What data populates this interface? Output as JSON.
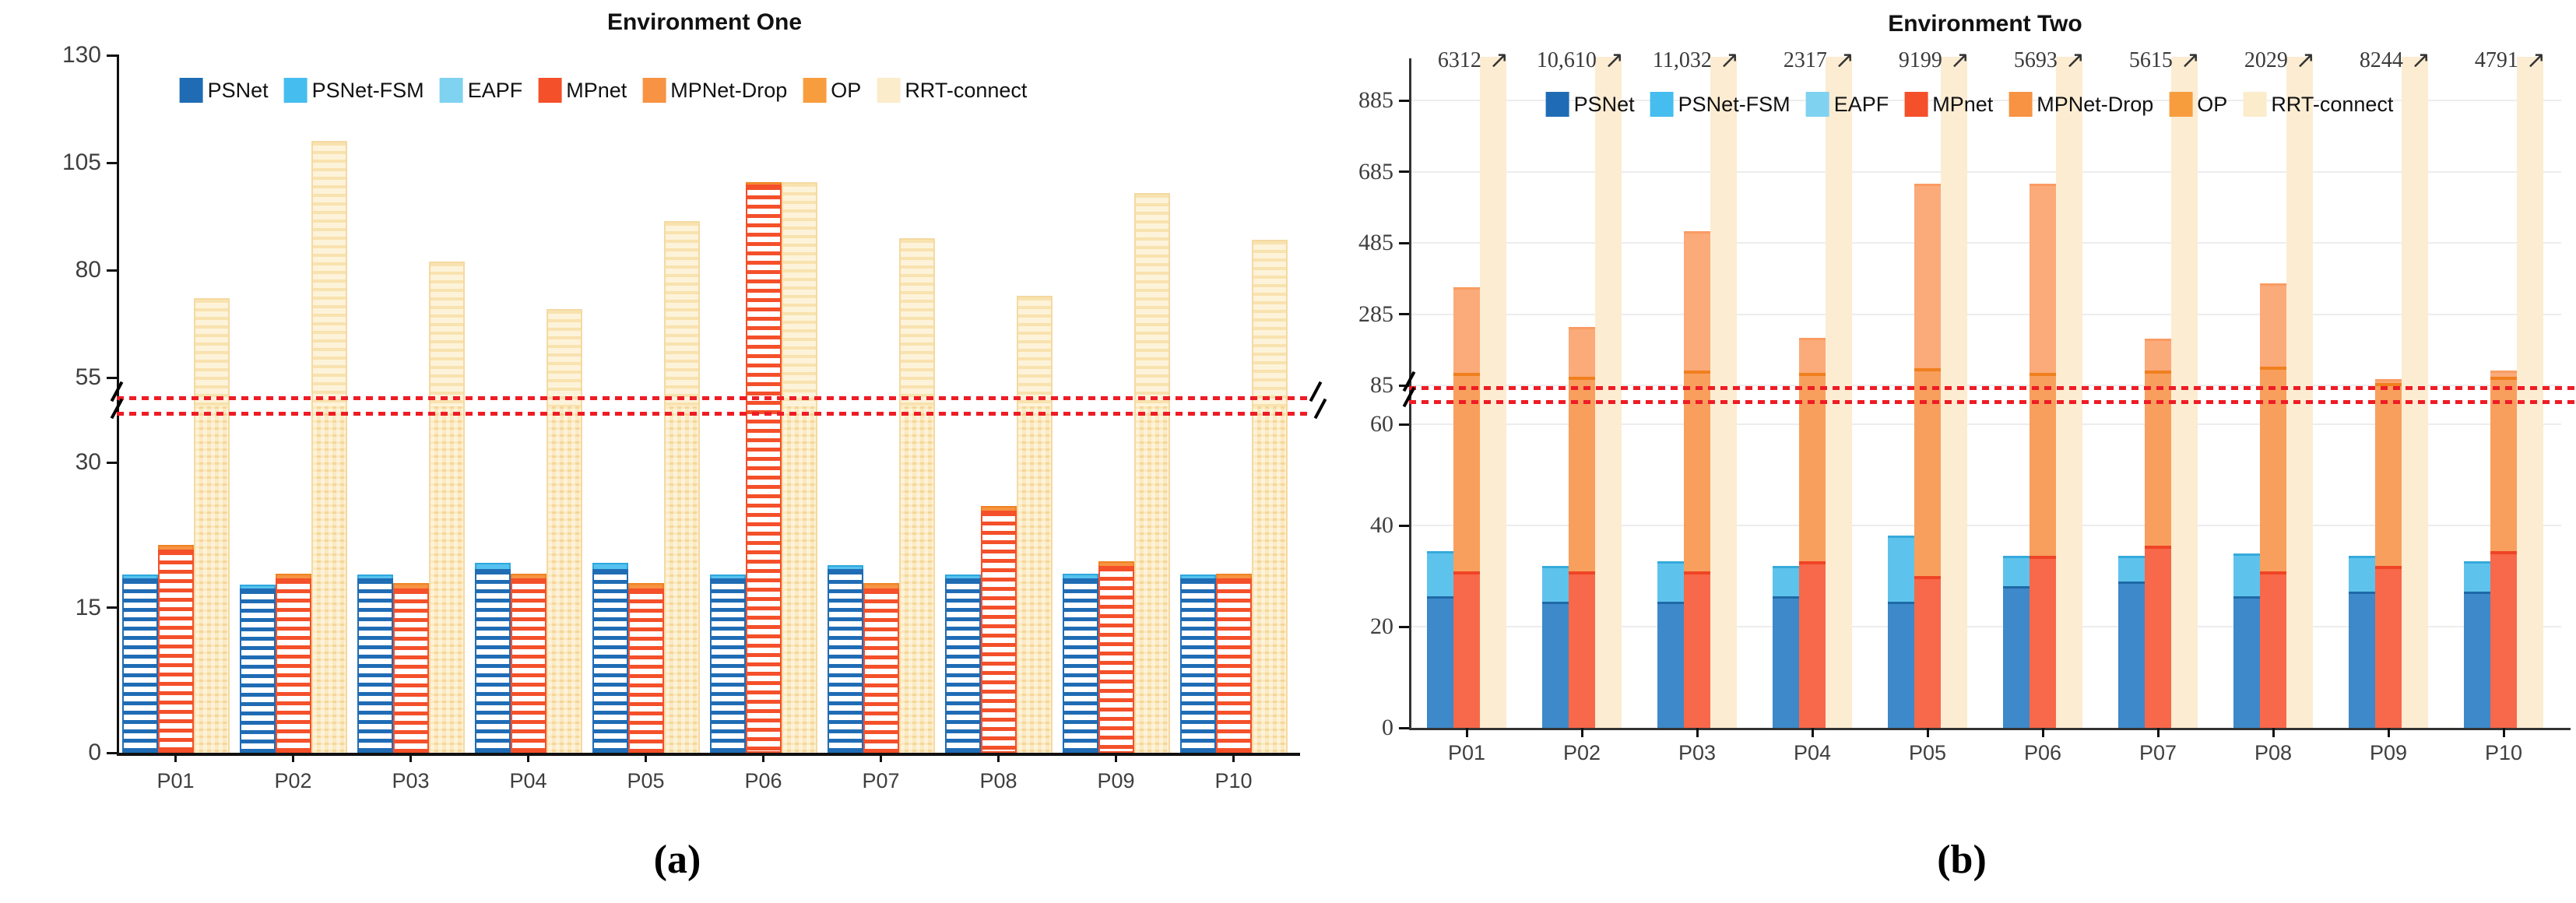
{
  "figure": {
    "caption_a": "(a)",
    "caption_b": "(b)"
  },
  "colors": {
    "psnet": "#1f6cb5",
    "psnet_fsm": "#56c2ef",
    "eapf": "#a9dcf2",
    "mpnet": "#f4502a",
    "mpnet_drop": "#f79342",
    "mpnet_drop_right": "#fbaa79",
    "op": "#f89f5d",
    "rrt_connect_fill": "#fdf3da",
    "rrt_connect_line": "#f5d9a2",
    "break_line_red": "#ee1c25",
    "gridline": "#ededed",
    "axis": "#111111"
  },
  "chart_data": [
    {
      "type": "bar",
      "title": "Environment One",
      "categories": [
        "P01",
        "P02",
        "P03",
        "P04",
        "P05",
        "P06",
        "P07",
        "P08",
        "P09",
        "P10"
      ],
      "legend": [
        "PSNet",
        "PSNet-FSM",
        "EAPF",
        "MPnet",
        "MPNet-Drop",
        "OP",
        "RRT-connect"
      ],
      "grid": false,
      "y_axis": {
        "lower_ticks": [
          0,
          15,
          30
        ],
        "upper_ticks": [
          55,
          80,
          105,
          130
        ],
        "axis_break": "broken axis between ~40 and ~52, marked by two red dotted lines and slash marks"
      },
      "series": [
        {
          "name": "PSNet",
          "values": [
            18,
            17,
            18,
            19,
            19,
            18,
            19,
            18,
            18,
            18
          ]
        },
        {
          "name": "PSNet-FSM",
          "values": [
            18.4,
            17.4,
            18.4,
            19.6,
            19.6,
            18.4,
            19.4,
            18.4,
            18.5,
            18.4
          ],
          "note": "only a thin light-blue cap visible above PSNet"
        },
        {
          "name": "EAPF",
          "values": null,
          "note": "fully occluded behind other bars"
        },
        {
          "name": "MPnet",
          "values": [
            21,
            18,
            17,
            18,
            17,
            100,
            17,
            25,
            19.3,
            18
          ]
        },
        {
          "name": "MPNet-Drop",
          "values": [
            21.5,
            18.5,
            17.5,
            18.5,
            17.5,
            100.4,
            17.5,
            25.5,
            19.8,
            18.5
          ],
          "note": "only a thin orange cap visible above MPnet"
        },
        {
          "name": "OP",
          "values": null,
          "note": "bar tops hidden inside the axis break (~40-50)"
        },
        {
          "name": "RRT-connect",
          "values": [
            73.5,
            110,
            82,
            71,
            91.5,
            100.5,
            87.5,
            74,
            98,
            87
          ]
        }
      ]
    },
    {
      "type": "bar",
      "title": "Environment Two",
      "categories": [
        "P01",
        "P02",
        "P03",
        "P04",
        "P05",
        "P06",
        "P07",
        "P08",
        "P09",
        "P10"
      ],
      "legend": [
        "PSNet",
        "PSNet-FSM",
        "EAPF",
        "MPnet",
        "MPNet-Drop",
        "OP",
        "RRT-connect"
      ],
      "grid": true,
      "y_axis": {
        "lower_ticks": [
          0,
          20,
          40,
          60
        ],
        "upper_ticks": [
          85,
          285,
          485,
          685,
          885
        ],
        "axis_break": "broken axis between 60 and 85, marked by two red dotted lines and slash marks"
      },
      "series": [
        {
          "name": "PSNet",
          "values": [
            26,
            25,
            25,
            26,
            25,
            28,
            29,
            26,
            27,
            27
          ]
        },
        {
          "name": "PSNet-FSM",
          "values": [
            35,
            32,
            33,
            32,
            38,
            34,
            34,
            34.5,
            34,
            33
          ]
        },
        {
          "name": "EAPF",
          "values": null,
          "note": "fully occluded behind other bars"
        },
        {
          "name": "MPnet",
          "values": [
            31,
            31,
            31,
            33,
            30,
            34,
            36,
            31,
            32,
            35
          ]
        },
        {
          "name": "MPNet-Drop",
          "values": [
            360,
            250,
            518,
            218,
            652,
            652,
            216,
            371,
            102,
            127
          ]
        },
        {
          "name": "OP",
          "values": [
            121,
            108,
            126,
            119,
            132,
            121,
            126,
            138,
            92,
            110
          ]
        },
        {
          "name": "RRT-connect",
          "values": null,
          "note": "bars run off the top of the axis; values given as annotations"
        }
      ],
      "annotations": {
        "arrow": "↗",
        "values": [
          "6312",
          "10,610",
          "11,032",
          "2317",
          "9199",
          "5693",
          "5615",
          "2029",
          "8244",
          "4791"
        ]
      }
    }
  ]
}
